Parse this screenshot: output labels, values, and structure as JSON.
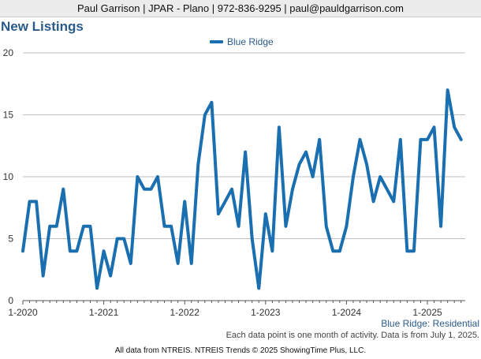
{
  "header": {
    "text": "Paul Garrison | JPAR - Plano | 972-836-9295 | paul@pauldgarrison.com"
  },
  "colors": {
    "series": "#1a6fb0",
    "title": "#2a5a8a",
    "grid": "#bfbfbf"
  },
  "chart_data": {
    "type": "line",
    "title": "New Listings",
    "subtitle": "Blue Ridge: Residential",
    "note": "Each data point is one month of activity. Data is from July 1, 2025.",
    "footer": "All data from NTREIS. NTREIS Trends © 2025 ShowingTime Plus, LLC.",
    "legend": {
      "position": "top-center"
    },
    "ylim": [
      0,
      20
    ],
    "yticks": [
      "0",
      "5",
      "10",
      "15",
      "20"
    ],
    "xticks": [
      "1-2020",
      "1-2021",
      "1-2022",
      "1-2023",
      "1-2024",
      "1-2025"
    ],
    "grid": true,
    "series": [
      {
        "name": "Blue Ridge",
        "start": "2020-01",
        "values": [
          4,
          8,
          8,
          2,
          6,
          6,
          9,
          4,
          4,
          6,
          6,
          1,
          4,
          2,
          5,
          5,
          3,
          10,
          9,
          9,
          10,
          6,
          6,
          3,
          8,
          3,
          11,
          15,
          16,
          7,
          8,
          9,
          6,
          12,
          5,
          1,
          7,
          4,
          14,
          6,
          9,
          11,
          12,
          10,
          13,
          6,
          4,
          4,
          6,
          10,
          13,
          11,
          8,
          10,
          9,
          8,
          13,
          4,
          4,
          13,
          13,
          14,
          6,
          17,
          14,
          13
        ]
      }
    ]
  }
}
